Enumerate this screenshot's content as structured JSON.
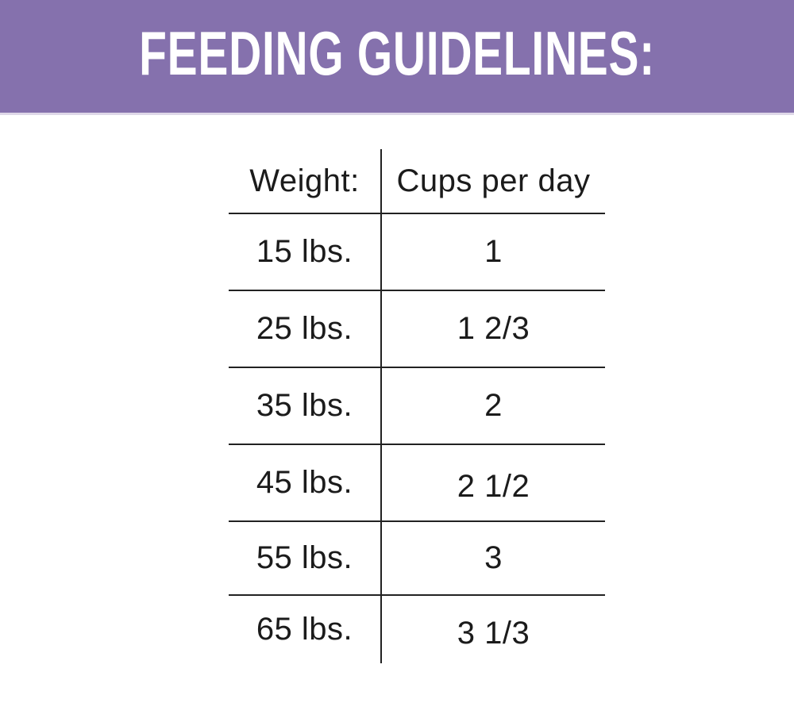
{
  "banner": {
    "title": "FEEDING GUIDELINES:",
    "bg_color": "#8571AD",
    "text_color": "#FFFFFF"
  },
  "table": {
    "line_color": "#222222",
    "text_color": "#1B1B1B",
    "header": {
      "weight": "Weight:",
      "cups": "Cups per day"
    },
    "rows": [
      {
        "weight": "15 lbs.",
        "cups": "1"
      },
      {
        "weight": "25 lbs.",
        "cups": "1 2/3"
      },
      {
        "weight": "35 lbs.",
        "cups": "2"
      },
      {
        "weight": "45 lbs.",
        "cups": "2 1/2"
      },
      {
        "weight": "55 lbs.",
        "cups": "3"
      },
      {
        "weight": "65 lbs.",
        "cups": "3 1/3"
      }
    ]
  },
  "chart_data": {
    "type": "table",
    "title": "FEEDING GUIDELINES:",
    "columns": [
      "Weight:",
      "Cups per day"
    ],
    "rows": [
      [
        "15 lbs.",
        "1"
      ],
      [
        "25 lbs.",
        "1 2/3"
      ],
      [
        "35 lbs.",
        "2"
      ],
      [
        "45 lbs.",
        "2 1/2"
      ],
      [
        "55 lbs.",
        "3"
      ],
      [
        "65 lbs.",
        "3 1/3"
      ]
    ],
    "weights_lbs": [
      15,
      25,
      35,
      45,
      55,
      65
    ],
    "cups_per_day_numeric": [
      1,
      1.667,
      2,
      2.5,
      3,
      3.333
    ]
  }
}
